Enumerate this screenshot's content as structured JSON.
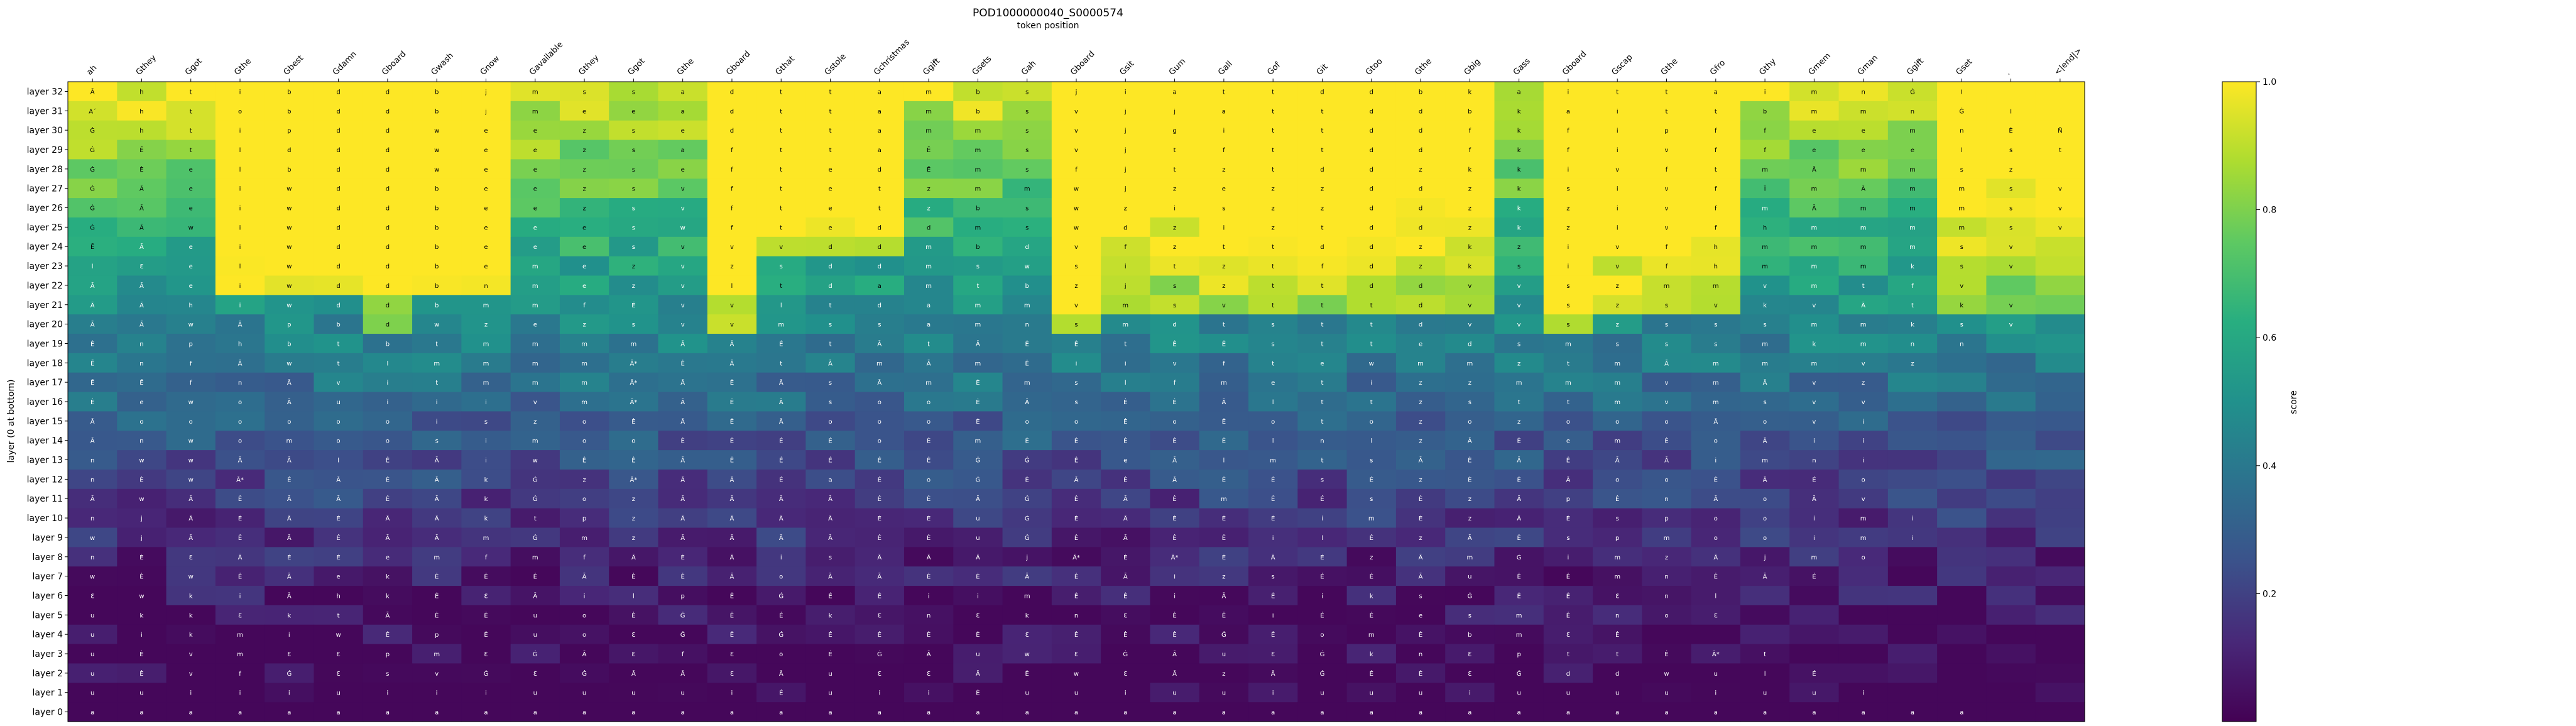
{
  "chart_data": {
    "type": "heatmap",
    "title": "POD1000000040_S0000574",
    "subtitle": "token position",
    "ylabel": "layer (0 at bottom)",
    "colorbar_label": "score",
    "colorbar_ticks": [
      0.2,
      0.4,
      0.6,
      0.8,
      1.0
    ],
    "value_range": [
      0.0,
      1.0
    ],
    "colormap": "viridis",
    "x_tokens": [
      "ah",
      "Gthey",
      "Ggot",
      "Gthe",
      "Gbest",
      "Gdamn",
      "Gboard",
      "Gwash",
      "Gnow",
      "Gavailable",
      "Gthey",
      "Ggot",
      "Gthe",
      "Gboard",
      "Gthat",
      "Gstole",
      "Gchristmas",
      "Ggift",
      "Gsets",
      "Gah",
      "Gboard",
      "Gsit",
      "Gum",
      "Gall",
      "Gof",
      "Git",
      "Gtoo",
      "Gthe",
      "Gbig",
      "Gass",
      "Gboard",
      "Gscap",
      "Gthe",
      "Gfro",
      "Gthy",
      "Gmem",
      "Gman",
      "Ggift",
      "Gset",
      ".",
      "<|end|>"
    ],
    "y_layers": [
      "layer 32",
      "layer 31",
      "layer 30",
      "layer 29",
      "layer 28",
      "layer 27",
      "layer 26",
      "layer 25",
      "layer 24",
      "layer 23",
      "layer 22",
      "layer 21",
      "layer 20",
      "layer 19",
      "layer 18",
      "layer 17",
      "layer 16",
      "layer 15",
      "layer 14",
      "layer 13",
      "layer 12",
      "layer 11",
      "layer 10",
      "layer 9",
      "layer 8",
      "layer 7",
      "layer 6",
      "layer 5",
      "layer 4",
      "layer 3",
      "layer 2",
      "layer 1",
      "layer 0"
    ],
    "cell_text": [
      "Ā h t i b d d b j m s s a d t t a m b s j i a t t d d b k a i t t a i m n Ġ I",
      "A´ h t o b d d b j m e e a d t t a m b s v j j a t t d d b k a i t t b m m n Ġ I",
      "Ġ h t i p d d w e e z s e d t t a m m s v j g i t t d d f k f i p f f e e m n Ė Ñ",
      "Ġ Ē t l d d d w e e z s a f t t a Ē m s v j t f t t d d f k f i v f f e e e l s t",
      "Ġ Ė e l b d d w e e z s e f t e d Ē m s f j t z t d d z k k i v f t m Ā m m s z",
      "Ġ Ā e i w d d b e e z s v f t e t z m m w j z e z z d d z k s i v f Ī m Ā m m s v",
      "Ġ Ā e i w d d b e e z s v f t e t z b s w z i s z z d d z k z i v f m Ā m m m s v",
      "Ġ Ā w i w d d b e e e s w f t e d d m s w d z i z t d d z k z i v f h m m m m s v",
      "Ē Ā e i w d d b e e e s v v v d d m b d v f z t t d d z k z i v f h m m m m s v",
      "l Ɛ e l w d d b e m e z v z s d d m s w s i t z t f d z k s i v f h m m m k s v",
      "Ā Ā e i w d d b n m e z v l t d a m t b z j s z t t d d v v s z m m v m t f v",
      "Ā Ā h i w d d b m m f Ē v v l t d a m m v m s v t t t d v v s z s v k v Ā t k v",
      "Ā Ā w Ā p b d w z e z s v v m s s a m n s m d t s t t d v v s z s s s m m k s v",
      "Ė n p h b t b t m m m m Ā Ā Ė t Ā t Ā Ė Ė t Ė Ė s t t e d s m s s s m k m n n",
      "Ē n f Ā w t l m m m m Ā* Ė Ā t Ā m Ā m Ė i i v f t e w m m z t m Ā m m m v z",
      "Ē Ē f n Ā v i t m m m Ā* Ā Ė Ā s Ā m Ė m s l f m e t i z z m m m v m Ā v z",
      "Ė e w o Ā u i i i v m Ā* Ā Ė Ā s o o Ė Ā s Ė Ė Ā l t t z s t t m v m s v v",
      "Ā o o o o o o i s z o Ė Ā Ė Ā o o o Ė o o Ė o Ė o t o z o z o o o Ā o v i",
      "Ā n w o m o o s i m o o Ė Ė Ė Ė o Ė m Ė Ė Ė Ė Ė l n l z Ā Ė e m Ė o Ā i i",
      "n w w Ā Ā l Ė Ā i w Ė Ė Ā Ė Ė Ė Ė Ė Ġ Ġ Ė e Ā l m t s Ā Ė Ā Ė Ā Ā i m n i",
      "n Ė w Ā* Ė Ā Ė Ā k Ġ z Ā* Ā Ā Ė a Ė o Ġ Ė Ā Ė Ā Ė Ė s Ė z Ė Ė Ā o o Ė Ā Ė o",
      "Ā w Ā Ė Ā Ā Ė Ā k Ġ o z Ā Ā Ā Ā Ė Ė Ā Ġ Ė Ā Ė m Ė Ė s Ė z Ā p Ė n Ā o Ā v",
      "n j Ā Ė Ā Ė Ā Ā k t p z Ā Ā Ā Ā Ė Ė u Ġ Ė Ā Ė Ė Ė i m Ė z Ā Ė s p o o i m i",
      "w j Ā Ė Ā Ė Ā Ā m Ġ m z Ā Ā Ā Ā Ė Ė u Ġ Ė Ā Ė Ė i l Ė z Ā Ė s p m o o i m i",
      "n Ė Ɛ Ā Ė Ė e m f m f Ā Ė Ā i s Ā Ā Ā j Ā* Ė Ā* Ė Ā Ė z Ā m Ġ i m z Ā j m o",
      "w Ė w Ė Ā e k Ė Ė Ė Ā Ė Ė Ā o Ā Ā Ė Ė Ā Ė Ā i z s Ė Ė Ā u Ė Ė m n Ė Ā Ė",
      "Ɛ w k i Ā h k Ė Ɛ Ā i l p Ė Ġ Ė Ė i i m Ė Ė i Ā Ė i k s Ġ Ė Ė Ɛ n l",
      "u k k Ɛ k t Ā Ė Ė u o Ė Ġ Ė Ė k Ɛ n Ɛ k n Ɛ Ė Ė i Ė Ė e s m Ė n o Ɛ",
      "u i k m i w Ė p Ė u o Ɛ Ġ Ė Ġ Ė Ė Ė Ė Ɛ Ė Ė Ė Ġ Ė o m Ė b m Ɛ Ė",
      "u Ė v m Ɛ Ɛ p m Ɛ Ġ Ā Ɛ f Ɛ o Ė Ġ Ā u w Ɛ Ġ Ā u Ɛ Ġ k n Ɛ p t t Ė Ā* t",
      "u Ė v f Ġ Ɛ s v Ġ Ɛ Ġ Ā Ā Ɛ Ā u Ɛ Ɛ Ā Ė w Ɛ Ā z Ā Ġ Ė Ė Ɛ Ġ d d w u l Ė",
      "u u i i i u i i i u u u u i Ė u i i Ė u u i u u i u u u i u u u u i u u i",
      "a a a a a a a a a a a a a a a a a a a a a a a a a a a a a a a a a a a a a a a"
    ]
  }
}
